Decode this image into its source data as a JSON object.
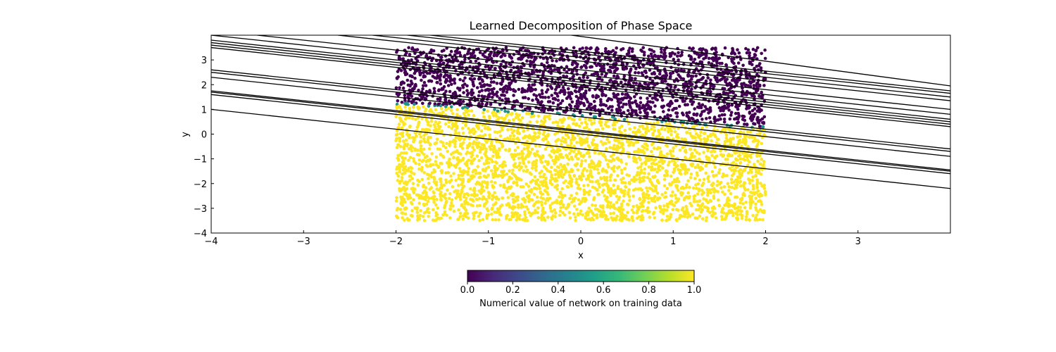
{
  "chart_data": {
    "type": "scatter",
    "title": "Learned Decomposition of Phase Space",
    "xlabel": "x",
    "ylabel": "y",
    "xlim": [
      -4,
      4
    ],
    "ylim": [
      -4,
      4
    ],
    "x_ticks": [
      -4,
      -3,
      -2,
      -1,
      0,
      1,
      2,
      3
    ],
    "x_tick_labels": [
      "−4",
      "−3",
      "−2",
      "−1",
      "0",
      "1",
      "2",
      "3"
    ],
    "y_ticks": [
      -4,
      -3,
      -2,
      -1,
      0,
      1,
      2,
      3
    ],
    "y_tick_labels": [
      "−4",
      "−3",
      "−2",
      "−1",
      "0",
      "1",
      "2",
      "3"
    ],
    "grid": false,
    "scatter_region": {
      "x_range": [
        -2,
        2
      ],
      "y_range": [
        -3.5,
        3.5
      ]
    },
    "class_boundary": {
      "slope": -0.25,
      "intercept": 0.75
    },
    "scatter_classes": [
      {
        "region": "above boundary",
        "value": 0.0,
        "color": "#440154"
      },
      {
        "region": "near boundary",
        "value": 0.6,
        "color": "#21918c"
      },
      {
        "region": "below boundary",
        "value": 1.0,
        "color": "#fde725"
      }
    ],
    "lines": [
      {
        "intercept": 3.95,
        "slope": -0.5
      },
      {
        "intercept": 3.35,
        "slope": -0.4
      },
      {
        "intercept": 3.25,
        "slope": -0.4
      },
      {
        "intercept": 3.1,
        "slope": -0.4
      },
      {
        "intercept": 2.95,
        "slope": -0.4
      },
      {
        "intercept": 2.6,
        "slope": -0.4
      },
      {
        "intercept": 2.4,
        "slope": -0.4
      },
      {
        "intercept": 2.2,
        "slope": -0.4
      },
      {
        "intercept": 2.1,
        "slope": -0.4
      },
      {
        "intercept": 2.0,
        "slope": -0.4
      },
      {
        "intercept": 1.9,
        "slope": -0.4
      },
      {
        "intercept": 1.0,
        "slope": -0.4
      },
      {
        "intercept": 0.9,
        "slope": -0.4
      },
      {
        "intercept": 0.7,
        "slope": -0.4
      },
      {
        "intercept": 0.15,
        "slope": -0.4
      },
      {
        "intercept": 0.1,
        "slope": -0.4
      },
      {
        "intercept": 0.0,
        "slope": -0.4
      },
      {
        "intercept": -0.6,
        "slope": -0.4
      }
    ],
    "colorbar": {
      "label": "Numerical value of network on training data",
      "range": [
        0,
        1
      ],
      "ticks": [
        "0.0",
        "0.2",
        "0.4",
        "0.6",
        "0.8",
        "1.0"
      ],
      "colormap": "viridis",
      "colormap_stops": [
        "#440154",
        "#482878",
        "#3e4989",
        "#31688e",
        "#26828e",
        "#1f9e89",
        "#35b779",
        "#6ece58",
        "#b5de2b",
        "#fde725"
      ]
    }
  }
}
